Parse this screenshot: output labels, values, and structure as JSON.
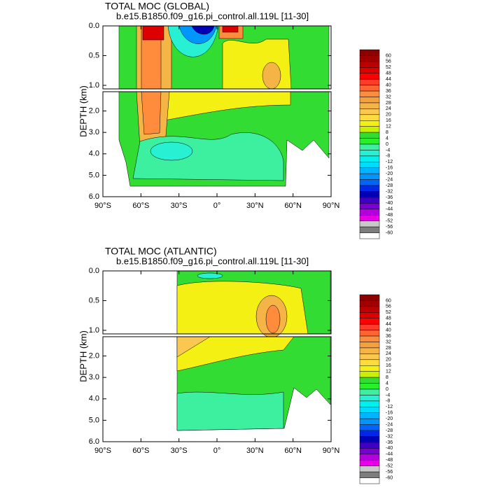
{
  "chart_data": [
    {
      "type": "contour",
      "title": "TOTAL MOC (GLOBAL)",
      "subtitle": "b.e15.B1850.f09_g16.pi_control.all.119L [11-30]",
      "ylabel": "DEPTH (km)",
      "xlim": [
        -90,
        90
      ],
      "xticks": [
        {
          "value": -90,
          "label": "90°S"
        },
        {
          "value": -60,
          "label": "60°S"
        },
        {
          "value": -30,
          "label": "30°S"
        },
        {
          "value": 0,
          "label": "0°"
        },
        {
          "value": 30,
          "label": "30°N"
        },
        {
          "value": 60,
          "label": "60°N"
        },
        {
          "value": 90,
          "label": "90°N"
        }
      ],
      "ylim": [
        0,
        1.06
      ],
      "yticks": [
        {
          "value": 0,
          "label": "0.0"
        },
        {
          "value": 0.5,
          "label": "0.5"
        },
        {
          "value": 1,
          "label": "1.0"
        }
      ],
      "lower_ylim": [
        1.1,
        6
      ],
      "lower_yticks": [
        {
          "value": 2,
          "label": "2.0"
        },
        {
          "value": 3,
          "label": "3.0"
        },
        {
          "value": 4,
          "label": "4.0"
        },
        {
          "value": 5,
          "label": "5.0"
        },
        {
          "value": 6,
          "label": "6.0"
        }
      ],
      "levels": [
        60,
        56,
        52,
        48,
        44,
        40,
        36,
        32,
        28,
        24,
        20,
        16,
        12,
        8,
        4,
        0,
        -4,
        -8,
        -12,
        -16,
        -20,
        -24,
        -28,
        -32,
        -36,
        -40,
        -44,
        -48,
        -52,
        -56,
        -60
      ],
      "colors": [
        "#8c0000",
        "#a00000",
        "#be0000",
        "#dc0000",
        "#ff0000",
        "#ff3c28",
        "#ff6432",
        "#ff8c3c",
        "#f5a03c",
        "#f5b446",
        "#fac850",
        "#ffdc3c",
        "#f5f014",
        "#c8f000",
        "#32dc32",
        "#28f028",
        "#3cf0a0",
        "#28f0d2",
        "#00f0f0",
        "#00dcff",
        "#00b4ff",
        "#0096ff",
        "#0064ff",
        "#0028e6",
        "#0000b4",
        "#3c00c8",
        "#7800d2",
        "#b400dc",
        "#e600e6",
        "#c8c8c8",
        "#7d7d7d",
        "#ffffff"
      ]
    },
    {
      "type": "contour",
      "title": "TOTAL MOC (ATLANTIC)",
      "subtitle": "b.e15.B1850.f09_g16.pi_control.all.119L [11-30]",
      "ylabel": "DEPTH (km)",
      "xlim": [
        -90,
        90
      ],
      "xticks": [
        {
          "value": -90,
          "label": "90°S"
        },
        {
          "value": -60,
          "label": "60°S"
        },
        {
          "value": -30,
          "label": "30°S"
        },
        {
          "value": 0,
          "label": "0°"
        },
        {
          "value": 30,
          "label": "30°N"
        },
        {
          "value": 60,
          "label": "60°N"
        },
        {
          "value": 90,
          "label": "90°N"
        }
      ],
      "ylim": [
        0,
        1.06
      ],
      "yticks": [
        {
          "value": 0,
          "label": "0.0"
        },
        {
          "value": 0.5,
          "label": "0.5"
        },
        {
          "value": 1,
          "label": "1.0"
        }
      ],
      "lower_ylim": [
        1.1,
        6
      ],
      "lower_yticks": [
        {
          "value": 2,
          "label": "2.0"
        },
        {
          "value": 3,
          "label": "3.0"
        },
        {
          "value": 4,
          "label": "4.0"
        },
        {
          "value": 5,
          "label": "5.0"
        },
        {
          "value": 6,
          "label": "6.0"
        }
      ],
      "levels": [
        60,
        56,
        52,
        48,
        44,
        40,
        36,
        32,
        28,
        24,
        20,
        16,
        12,
        8,
        4,
        0,
        -4,
        -8,
        -12,
        -16,
        -20,
        -24,
        -28,
        -32,
        -36,
        -40,
        -44,
        -48,
        -52,
        -56,
        -60
      ],
      "colors": [
        "#8c0000",
        "#a00000",
        "#be0000",
        "#dc0000",
        "#ff0000",
        "#ff3c28",
        "#ff6432",
        "#ff8c3c",
        "#f5a03c",
        "#f5b446",
        "#fac850",
        "#ffdc3c",
        "#f5f014",
        "#c8f000",
        "#32dc32",
        "#28f028",
        "#3cf0a0",
        "#28f0d2",
        "#00f0f0",
        "#00dcff",
        "#00b4ff",
        "#0096ff",
        "#0064ff",
        "#0028e6",
        "#0000b4",
        "#3c00c8",
        "#7800d2",
        "#b400dc",
        "#e600e6",
        "#c8c8c8",
        "#7d7d7d",
        "#ffffff"
      ]
    }
  ]
}
